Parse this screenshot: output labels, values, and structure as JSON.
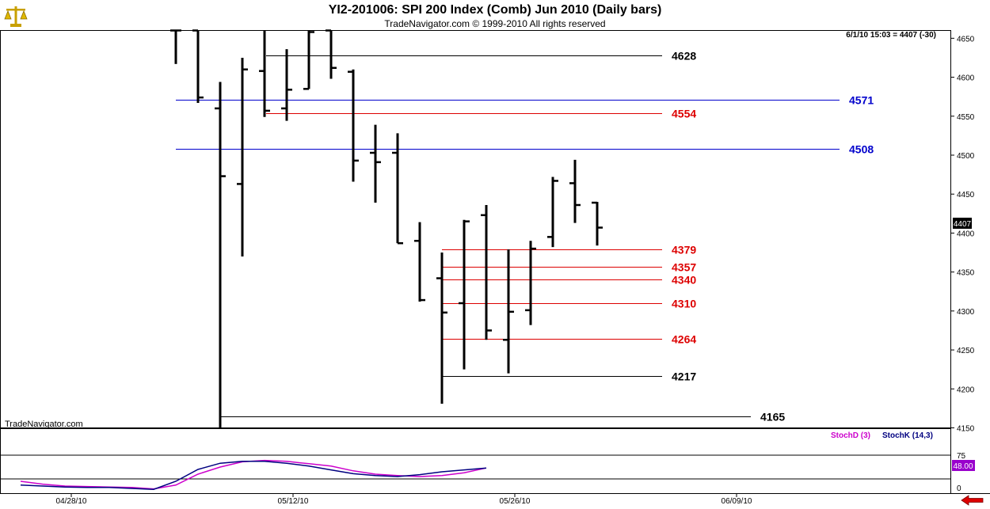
{
  "header": {
    "title": "YI2-201006:  SPI 200 Index (Comb) Jun 2010  (Daily bars)",
    "subtitle": "TradeNavigator.com © 1999-2010 All rights reserved"
  },
  "watermark": "TradeNavigator.com",
  "quote_line": "6/1/10 15:03 = 4407 (-30)",
  "last_price_badge": "4407",
  "colors": {
    "bar": "#000000",
    "level_black": "#000000",
    "level_red": "#dd0000",
    "level_blue": "#0000cc",
    "stoch_d": "#cc00cc",
    "stoch_k": "#000080",
    "badge_bg": "#9900cc",
    "arrow": "#dd0000"
  },
  "icons": {
    "logo": "scales-icon",
    "nav": "left-arrow-icon"
  },
  "chart_data": [
    {
      "type": "ohlc",
      "title": "YI2-201006:  SPI 200 Index (Comb) Jun 2010  (Daily bars)",
      "ylim": [
        4150,
        4660
      ],
      "y_ticks": [
        4650,
        4600,
        4550,
        4500,
        4450,
        4400,
        4350,
        4300,
        4250,
        4200,
        4150
      ],
      "x_tick_labels": [
        "04/28/10",
        "05/12/10",
        "05/26/10",
        "06/09/10"
      ],
      "bars": [
        {
          "x": 0,
          "open": 4665,
          "high": 4665,
          "low": 4617,
          "close": 4665
        },
        {
          "x": 1,
          "open": 4665,
          "high": 4665,
          "low": 4567,
          "close": 4574
        },
        {
          "x": 2,
          "open": 4560,
          "high": 4594,
          "low": 4145,
          "close": 4473
        },
        {
          "x": 3,
          "open": 4463,
          "high": 4625,
          "low": 4370,
          "close": 4610
        },
        {
          "x": 4,
          "open": 4608,
          "high": 4662,
          "low": 4549,
          "close": 4557
        },
        {
          "x": 5,
          "open": 4560,
          "high": 4636,
          "low": 4544,
          "close": 4584
        },
        {
          "x": 6,
          "open": 4585,
          "high": 4665,
          "low": 4585,
          "close": 4658
        },
        {
          "x": 7,
          "open": 4665,
          "high": 4665,
          "low": 4598,
          "close": 4612
        },
        {
          "x": 8,
          "open": 4607,
          "high": 4610,
          "low": 4466,
          "close": 4493
        },
        {
          "x": 9,
          "open": 4503,
          "high": 4539,
          "low": 4439,
          "close": 4491
        },
        {
          "x": 10,
          "open": 4503,
          "high": 4528,
          "low": 4387,
          "close": 4387
        },
        {
          "x": 11,
          "open": 4390,
          "high": 4414,
          "low": 4312,
          "close": 4314
        },
        {
          "x": 12,
          "open": 4342,
          "high": 4375,
          "low": 4181,
          "close": 4298
        },
        {
          "x": 13,
          "open": 4310,
          "high": 4417,
          "low": 4225,
          "close": 4415
        },
        {
          "x": 14,
          "open": 4423,
          "high": 4436,
          "low": 4263,
          "close": 4275
        },
        {
          "x": 15,
          "open": 4263,
          "high": 4379,
          "low": 4220,
          "close": 4299
        },
        {
          "x": 16,
          "open": 4301,
          "high": 4390,
          "low": 4282,
          "close": 4380
        },
        {
          "x": 17,
          "open": 4395,
          "high": 4472,
          "low": 4382,
          "close": 4467
        },
        {
          "x": 18,
          "open": 4464,
          "high": 4494,
          "low": 4413,
          "close": 4436
        },
        {
          "x": 19,
          "open": 4439,
          "high": 4440,
          "low": 4384,
          "close": 4407
        }
      ],
      "levels": [
        {
          "value": 4628,
          "label": "4628",
          "color": "#000000"
        },
        {
          "value": 4571,
          "label": "4571",
          "color": "#0000cc"
        },
        {
          "value": 4554,
          "label": "4554",
          "color": "#dd0000"
        },
        {
          "value": 4508,
          "label": "4508",
          "color": "#0000cc"
        },
        {
          "value": 4379,
          "label": "4379",
          "color": "#dd0000"
        },
        {
          "value": 4357,
          "label": "4357",
          "color": "#dd0000"
        },
        {
          "value": 4340,
          "label": "4340",
          "color": "#dd0000"
        },
        {
          "value": 4310,
          "label": "4310",
          "color": "#dd0000"
        },
        {
          "value": 4264,
          "label": "4264",
          "color": "#dd0000"
        },
        {
          "value": 4217,
          "label": "4217",
          "color": "#000000"
        },
        {
          "value": 4165,
          "label": "4165",
          "color": "#000000"
        }
      ],
      "grid": false
    },
    {
      "type": "line",
      "ylim": [
        0,
        100
      ],
      "y_ticks": [
        75,
        0
      ],
      "reference_lines": [
        75,
        25
      ],
      "last_value_badge": "48.00",
      "series": [
        {
          "name": "StochD (3)",
          "color": "#cc00cc",
          "values": [
            [
              -7,
              20
            ],
            [
              -6,
              14
            ],
            [
              -5,
              10
            ],
            [
              -4,
              9
            ],
            [
              -3,
              8
            ],
            [
              -2,
              7
            ],
            [
              -1,
              4
            ],
            [
              0,
              12
            ],
            [
              1,
              35
            ],
            [
              2,
              50
            ],
            [
              3,
              61
            ],
            [
              4,
              64
            ],
            [
              5,
              62
            ],
            [
              6,
              57
            ],
            [
              7,
              52
            ],
            [
              8,
              42
            ],
            [
              9,
              35
            ],
            [
              10,
              32
            ],
            [
              11,
              30
            ],
            [
              12,
              32
            ],
            [
              13,
              38
            ],
            [
              14,
              48
            ]
          ]
        },
        {
          "name": "StochK (14,3)",
          "color": "#000080",
          "values": [
            [
              -7,
              12
            ],
            [
              -6,
              10
            ],
            [
              -5,
              8
            ],
            [
              -4,
              7
            ],
            [
              -3,
              7
            ],
            [
              -2,
              5
            ],
            [
              -1,
              3
            ],
            [
              0,
              20
            ],
            [
              1,
              45
            ],
            [
              2,
              58
            ],
            [
              3,
              62
            ],
            [
              4,
              62
            ],
            [
              5,
              58
            ],
            [
              6,
              52
            ],
            [
              7,
              44
            ],
            [
              8,
              36
            ],
            [
              9,
              32
            ],
            [
              10,
              30
            ],
            [
              11,
              34
            ],
            [
              12,
              40
            ],
            [
              13,
              44
            ],
            [
              14,
              48
            ]
          ]
        }
      ]
    }
  ]
}
